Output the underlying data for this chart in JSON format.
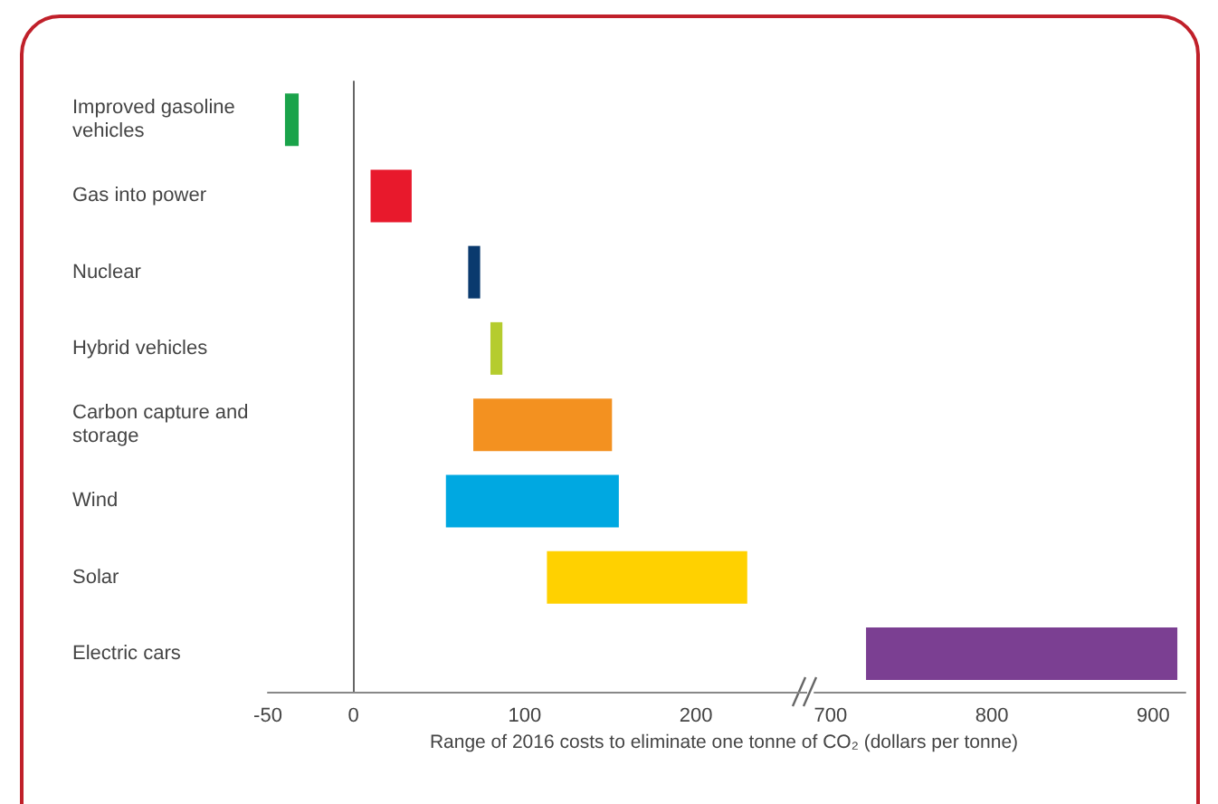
{
  "chart_data": [
    {
      "type": "bar",
      "orientation": "horizontal",
      "xlabel": "Range of 2016 costs to eliminate one tonne of CO₂ (dollars per tonne)",
      "categories": [
        "Improved gasoline vehicles",
        "Gas into power",
        "Nuclear",
        "Hybrid vehicles",
        "Carbon capture and storage",
        "Wind",
        "Solar",
        "Electric cars"
      ],
      "base": [
        -40,
        10,
        67,
        80,
        70,
        54,
        113,
        null
      ],
      "values": [
        8,
        24,
        7,
        7,
        81,
        101,
        117,
        null
      ],
      "colors": [
        "#1aa34a",
        "#e8192c",
        "#0a3a6e",
        "#b5cc2e",
        "#f39120",
        "#00a8e1",
        "#ffd100",
        "#7b3f92"
      ],
      "xlim": [
        -50,
        265
      ],
      "xticks": [
        -50,
        0,
        100,
        200
      ]
    },
    {
      "type": "bar",
      "orientation": "horizontal",
      "categories": [
        "Improved gasoline vehicles",
        "Gas into power",
        "Nuclear",
        "Hybrid vehicles",
        "Carbon capture and storage",
        "Wind",
        "Solar",
        "Electric cars"
      ],
      "base": [
        null,
        null,
        null,
        null,
        null,
        null,
        null,
        722
      ],
      "values": [
        null,
        null,
        null,
        null,
        null,
        null,
        null,
        193
      ],
      "colors": [
        "#1aa34a",
        "#e8192c",
        "#0a3a6e",
        "#b5cc2e",
        "#f39120",
        "#00a8e1",
        "#ffd100",
        "#7b3f92"
      ],
      "xlim": [
        690,
        920
      ],
      "xticks": [
        700,
        800,
        900
      ],
      "tick_labels": "x"
    }
  ]
}
